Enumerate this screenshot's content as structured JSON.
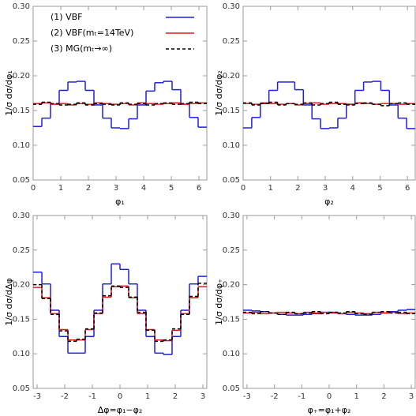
{
  "chart_data": [
    {
      "type": "step-histogram",
      "ylabel": "1/σ dσ/dφ₁",
      "xlabel": "φ₁",
      "bins": [
        0,
        0.314,
        0.628,
        0.942,
        1.257,
        1.571,
        1.885,
        2.199,
        2.513,
        2.827,
        3.142,
        3.456,
        3.77,
        4.084,
        4.398,
        4.712,
        5.027,
        5.341,
        5.655,
        5.969,
        6.283
      ],
      "xlim": [
        0,
        6.283
      ],
      "xticks": [
        0,
        1,
        2,
        3,
        4,
        5,
        6
      ],
      "ylim": [
        0.05,
        0.3
      ],
      "yticks": [
        0.05,
        {
          "value": 0.1,
          "label": "0.10"
        },
        0.15,
        {
          "value": 0.2,
          "label": "0.20"
        },
        0.25,
        {
          "value": 0.3,
          "label": "0.30"
        }
      ],
      "legend": "top",
      "series": [
        {
          "name": "(1) VBF",
          "color": "#1f1fdd",
          "style": "solid",
          "values": [
            0.127,
            0.139,
            0.159,
            0.179,
            0.191,
            0.192,
            0.179,
            0.158,
            0.139,
            0.125,
            0.124,
            0.138,
            0.158,
            0.178,
            0.19,
            0.192,
            0.18,
            0.159,
            0.14,
            0.126
          ]
        },
        {
          "name": "(2) VBF(mₜ=14TeV)",
          "color": "#e31a1c",
          "style": "solid",
          "values": [
            0.16,
            0.161,
            0.159,
            0.16,
            0.158,
            0.16,
            0.159,
            0.161,
            0.16,
            0.159,
            0.16,
            0.158,
            0.161,
            0.16,
            0.159,
            0.16,
            0.161,
            0.159,
            0.16,
            0.161
          ]
        },
        {
          "name": "(3) MG(mₜ→∞)",
          "color": "#000000",
          "style": "dashed",
          "values": [
            0.159,
            0.162,
            0.16,
            0.158,
            0.159,
            0.161,
            0.158,
            0.16,
            0.159,
            0.158,
            0.161,
            0.159,
            0.16,
            0.158,
            0.16,
            0.161,
            0.159,
            0.16,
            0.162,
            0.16
          ]
        }
      ]
    },
    {
      "type": "step-histogram",
      "ylabel": "1/σ dσ/dφ₂",
      "xlabel": "φ₂",
      "bins": [
        0,
        0.314,
        0.628,
        0.942,
        1.257,
        1.571,
        1.885,
        2.199,
        2.513,
        2.827,
        3.142,
        3.456,
        3.77,
        4.084,
        4.398,
        4.712,
        5.027,
        5.341,
        5.655,
        5.969,
        6.283
      ],
      "xlim": [
        0,
        6.283
      ],
      "xticks": [
        0,
        1,
        2,
        3,
        4,
        5,
        6
      ],
      "ylim": [
        0.05,
        0.3
      ],
      "yticks": [
        0.05,
        {
          "value": 0.1,
          "label": "0.10"
        },
        0.15,
        {
          "value": 0.2,
          "label": "0.20"
        },
        0.25,
        {
          "value": 0.3,
          "label": "0.30"
        }
      ],
      "series": [
        {
          "color": "#1f1fdd",
          "style": "solid",
          "values": [
            0.125,
            0.14,
            0.16,
            0.179,
            0.191,
            0.191,
            0.18,
            0.158,
            0.138,
            0.124,
            0.125,
            0.139,
            0.159,
            0.179,
            0.191,
            0.192,
            0.179,
            0.158,
            0.139,
            0.124
          ]
        },
        {
          "color": "#e31a1c",
          "style": "solid",
          "values": [
            0.16,
            0.159,
            0.161,
            0.16,
            0.159,
            0.16,
            0.158,
            0.16,
            0.161,
            0.159,
            0.16,
            0.16,
            0.159,
            0.161,
            0.16,
            0.159,
            0.16,
            0.16,
            0.159,
            0.16
          ]
        },
        {
          "color": "#000000",
          "style": "dashed",
          "values": [
            0.161,
            0.158,
            0.16,
            0.162,
            0.158,
            0.16,
            0.159,
            0.161,
            0.158,
            0.16,
            0.162,
            0.159,
            0.158,
            0.16,
            0.161,
            0.159,
            0.157,
            0.16,
            0.161,
            0.159
          ]
        }
      ]
    },
    {
      "type": "step-histogram",
      "ylabel": "1/σ dσ/dΔφ",
      "xlabel": "Δφ=φ₁−φ₂",
      "bins": [
        -3.142,
        -2.827,
        -2.513,
        -2.199,
        -1.885,
        -1.571,
        -1.257,
        -0.942,
        -0.628,
        -0.314,
        0,
        0.314,
        0.628,
        0.942,
        1.257,
        1.571,
        1.885,
        2.199,
        2.513,
        2.827,
        3.142
      ],
      "xlim": [
        -3.142,
        3.142
      ],
      "xticks": [
        -3,
        -2,
        -1,
        0,
        1,
        2,
        3
      ],
      "ylim": [
        0.05,
        0.3
      ],
      "yticks": [
        0.05,
        {
          "value": 0.1,
          "label": "0.10"
        },
        0.15,
        {
          "value": 0.2,
          "label": "0.20"
        },
        0.25,
        {
          "value": 0.3,
          "label": "0.30"
        }
      ],
      "series": [
        {
          "color": "#1f1fdd",
          "style": "solid",
          "values": [
            0.218,
            0.201,
            0.163,
            0.125,
            0.101,
            0.101,
            0.125,
            0.163,
            0.201,
            0.23,
            0.222,
            0.201,
            0.163,
            0.125,
            0.101,
            0.099,
            0.125,
            0.163,
            0.201,
            0.212
          ]
        },
        {
          "color": "#e31a1c",
          "style": "solid",
          "values": [
            0.196,
            0.181,
            0.158,
            0.135,
            0.12,
            0.12,
            0.135,
            0.158,
            0.182,
            0.197,
            0.198,
            0.181,
            0.158,
            0.135,
            0.12,
            0.119,
            0.134,
            0.158,
            0.181,
            0.197
          ]
        },
        {
          "color": "#000000",
          "style": "dashed",
          "values": [
            0.2,
            0.18,
            0.157,
            0.133,
            0.118,
            0.121,
            0.136,
            0.159,
            0.184,
            0.198,
            0.196,
            0.182,
            0.16,
            0.134,
            0.118,
            0.12,
            0.136,
            0.157,
            0.183,
            0.202
          ]
        }
      ]
    },
    {
      "type": "step-histogram",
      "ylabel": "1/σ dσ/dφ₊",
      "xlabel": "φ₊=φ₁+φ₂",
      "bins": [
        -3.142,
        -2.827,
        -2.513,
        -2.199,
        -1.885,
        -1.571,
        -1.257,
        -0.942,
        -0.628,
        -0.314,
        0,
        0.314,
        0.628,
        0.942,
        1.257,
        1.571,
        1.885,
        2.199,
        2.513,
        2.827,
        3.142
      ],
      "xlim": [
        -3.142,
        3.142
      ],
      "xticks": [
        -3,
        -2,
        -1,
        0,
        1,
        2,
        3
      ],
      "ylim": [
        0.05,
        0.3
      ],
      "yticks": [
        0.05,
        {
          "value": 0.1,
          "label": "0.10"
        },
        0.15,
        {
          "value": 0.2,
          "label": "0.20"
        },
        0.25,
        {
          "value": 0.3,
          "label": "0.30"
        }
      ],
      "series": [
        {
          "color": "#1f1fdd",
          "style": "solid",
          "values": [
            0.163,
            0.162,
            0.161,
            0.159,
            0.157,
            0.156,
            0.156,
            0.157,
            0.158,
            0.16,
            0.16,
            0.158,
            0.157,
            0.156,
            0.156,
            0.157,
            0.159,
            0.161,
            0.163,
            0.164
          ]
        },
        {
          "color": "#e31a1c",
          "style": "solid",
          "values": [
            0.159,
            0.16,
            0.158,
            0.159,
            0.16,
            0.159,
            0.158,
            0.16,
            0.159,
            0.16,
            0.159,
            0.158,
            0.16,
            0.159,
            0.158,
            0.16,
            0.159,
            0.16,
            0.158,
            0.159
          ]
        },
        {
          "color": "#000000",
          "style": "dashed",
          "values": [
            0.16,
            0.158,
            0.161,
            0.159,
            0.157,
            0.16,
            0.158,
            0.159,
            0.161,
            0.158,
            0.16,
            0.159,
            0.161,
            0.158,
            0.157,
            0.16,
            0.161,
            0.159,
            0.16,
            0.158
          ]
        }
      ]
    }
  ]
}
